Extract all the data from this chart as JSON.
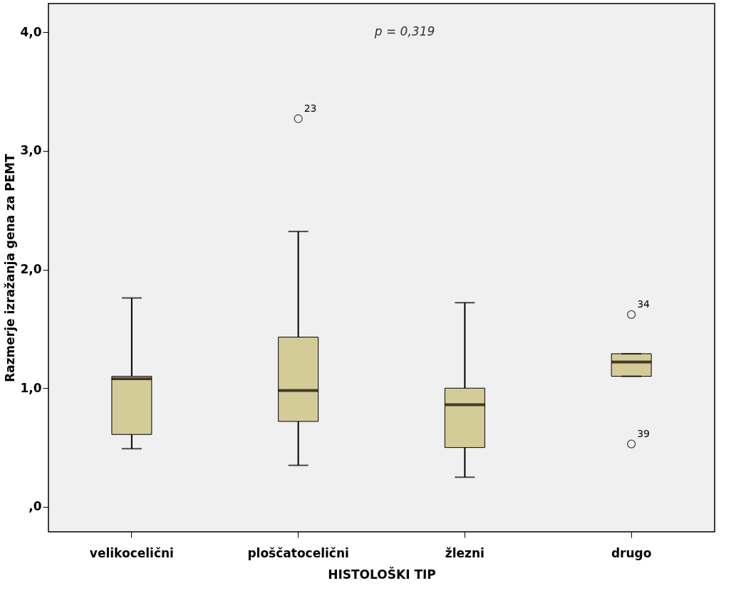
{
  "chart_data": {
    "type": "box",
    "xlabel": "HISTOLOŠKI TIP",
    "ylabel": "Razmerje izražanja gena za PEMT",
    "categories": [
      "velikocelični",
      "ploščatocelični",
      "žlezni",
      "drugo"
    ],
    "boxes": [
      {
        "low": 0.49,
        "q1": 0.61,
        "median": 1.08,
        "q3": 1.1,
        "high": 1.76
      },
      {
        "low": 0.35,
        "q1": 0.72,
        "median": 0.98,
        "q3": 1.43,
        "high": 2.32,
        "outliers": [
          3.27
        ]
      },
      {
        "low": 0.25,
        "q1": 0.5,
        "median": 0.86,
        "q3": 1.0,
        "high": 1.72
      },
      {
        "low": 1.1,
        "q1": 1.1,
        "median": 1.22,
        "q3": 1.29,
        "high": 1.29,
        "outliers": [
          1.62,
          0.53
        ]
      }
    ],
    "color": "#d4cc98",
    "ylim": [
      -0.21,
      4.24
    ],
    "yticks": [
      {
        "value": 0,
        "label": ",0"
      },
      {
        "value": 1,
        "label": "1,0"
      },
      {
        "value": 2,
        "label": "2,0"
      },
      {
        "value": 3,
        "label": "3,0"
      },
      {
        "value": 4,
        "label": "4,0"
      }
    ],
    "grid": false,
    "annotations": [
      "p = 0,319",
      "23",
      "34",
      "39"
    ]
  }
}
